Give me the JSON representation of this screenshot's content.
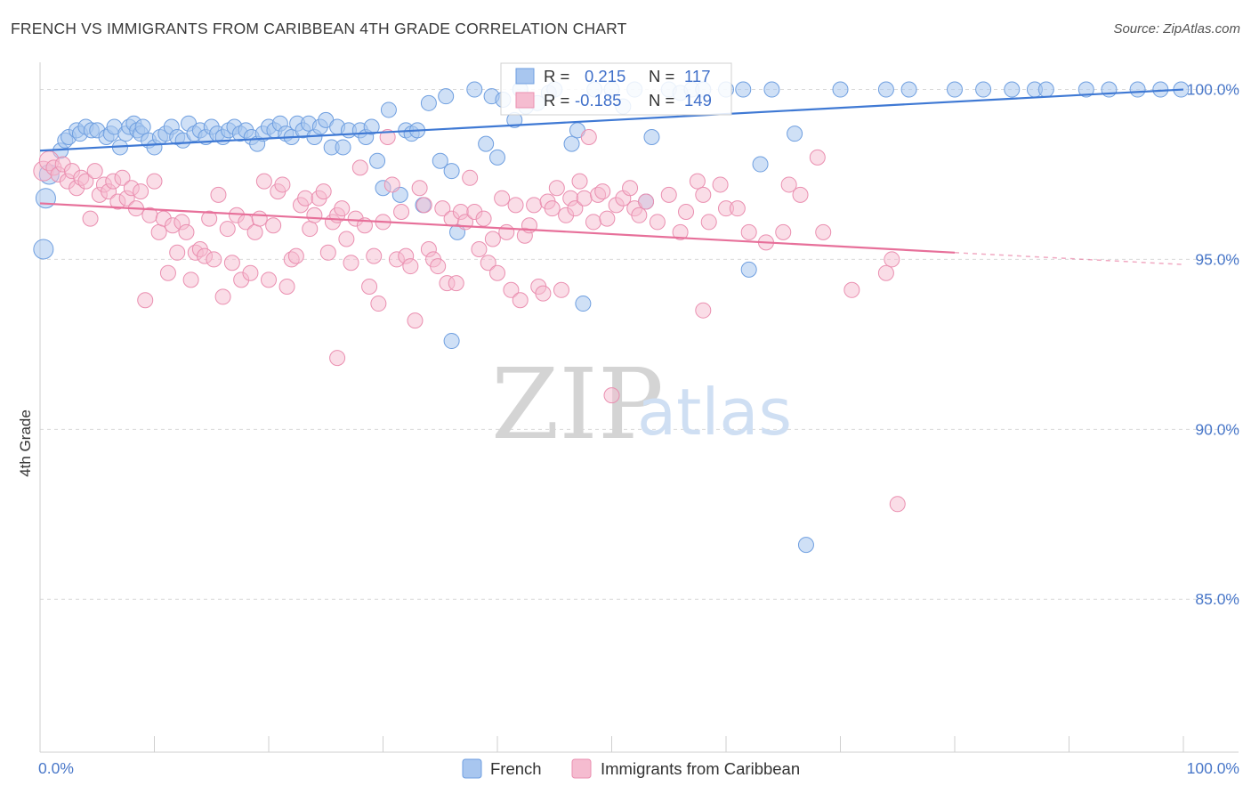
{
  "header": {
    "title": "FRENCH VS IMMIGRANTS FROM CARIBBEAN 4TH GRADE CORRELATION CHART",
    "source": "Source: ZipAtlas.com"
  },
  "watermark": {
    "zip": "ZIP",
    "atlas": "atlas"
  },
  "stats_box": {
    "rows": [
      {
        "r_label": "R =",
        "r_value": "0.215",
        "n_label": "N =",
        "n_value": "117"
      },
      {
        "r_label": "R =",
        "r_value": "-0.185",
        "n_label": "N =",
        "n_value": "149"
      }
    ]
  },
  "colors": {
    "french": "#6f9fe0",
    "french_fill": "#a8c6ef",
    "french_line": "#3f79d4",
    "caribbean": "#ea8fb0",
    "caribbean_fill": "#f5bcd0",
    "caribbean_line": "#e7709a",
    "tick_text": "#4a78c9",
    "grid": "#d9d9d9"
  },
  "chart_data": {
    "type": "scatter",
    "title": "FRENCH VS IMMIGRANTS FROM CARIBBEAN 4TH GRADE CORRELATION CHART",
    "xlabel": "",
    "ylabel": "4th Grade",
    "xlim": [
      0,
      100
    ],
    "ylim": [
      80.5,
      100.8
    ],
    "x_tick_labels": [
      "0.0%",
      "100.0%"
    ],
    "y_ticks": [
      85,
      90,
      95,
      100
    ],
    "y_tick_labels": [
      "85.0%",
      "90.0%",
      "95.0%",
      "100.0%"
    ],
    "grid": true,
    "legend_position": "bottom",
    "series": [
      {
        "name": "French",
        "r": 0.215,
        "n": 117,
        "trend": {
          "x": [
            0,
            100
          ],
          "y": [
            98.2,
            100.0
          ]
        },
        "points": [
          [
            0.5,
            96.8
          ],
          [
            0.3,
            95.3
          ],
          [
            0.8,
            97.5
          ],
          [
            1.8,
            98.2
          ],
          [
            2.2,
            98.5
          ],
          [
            2.5,
            98.6
          ],
          [
            3.2,
            98.8
          ],
          [
            3.5,
            98.7
          ],
          [
            4.0,
            98.9
          ],
          [
            4.5,
            98.8
          ],
          [
            5.0,
            98.8
          ],
          [
            5.8,
            98.6
          ],
          [
            6.2,
            98.7
          ],
          [
            6.5,
            98.9
          ],
          [
            7.0,
            98.3
          ],
          [
            7.5,
            98.7
          ],
          [
            7.8,
            98.9
          ],
          [
            8.2,
            99.0
          ],
          [
            8.5,
            98.8
          ],
          [
            8.8,
            98.7
          ],
          [
            9.0,
            98.9
          ],
          [
            9.5,
            98.5
          ],
          [
            10.0,
            98.3
          ],
          [
            10.5,
            98.6
          ],
          [
            11.0,
            98.7
          ],
          [
            11.5,
            98.9
          ],
          [
            12.0,
            98.6
          ],
          [
            12.5,
            98.5
          ],
          [
            13.0,
            99.0
          ],
          [
            13.5,
            98.7
          ],
          [
            14.0,
            98.8
          ],
          [
            14.5,
            98.6
          ],
          [
            15.0,
            98.9
          ],
          [
            15.5,
            98.7
          ],
          [
            16.0,
            98.6
          ],
          [
            16.5,
            98.8
          ],
          [
            17.0,
            98.9
          ],
          [
            17.5,
            98.7
          ],
          [
            18.0,
            98.8
          ],
          [
            18.5,
            98.6
          ],
          [
            19.0,
            98.4
          ],
          [
            19.5,
            98.7
          ],
          [
            20.0,
            98.9
          ],
          [
            20.5,
            98.8
          ],
          [
            21.0,
            99.0
          ],
          [
            21.5,
            98.7
          ],
          [
            22.0,
            98.6
          ],
          [
            22.5,
            99.0
          ],
          [
            23.0,
            98.8
          ],
          [
            23.5,
            99.0
          ],
          [
            24.0,
            98.6
          ],
          [
            24.5,
            98.9
          ],
          [
            25.0,
            99.1
          ],
          [
            25.5,
            98.3
          ],
          [
            26.0,
            98.9
          ],
          [
            26.5,
            98.3
          ],
          [
            27.0,
            98.8
          ],
          [
            28.0,
            98.8
          ],
          [
            28.5,
            98.6
          ],
          [
            29.0,
            98.9
          ],
          [
            29.5,
            97.9
          ],
          [
            30.0,
            97.1
          ],
          [
            30.5,
            99.4
          ],
          [
            31.5,
            96.9
          ],
          [
            32.0,
            98.8
          ],
          [
            32.5,
            98.7
          ],
          [
            33.0,
            98.8
          ],
          [
            33.5,
            96.6
          ],
          [
            34.0,
            99.6
          ],
          [
            35.0,
            97.9
          ],
          [
            35.5,
            99.8
          ],
          [
            36.0,
            97.6
          ],
          [
            36.5,
            95.8
          ],
          [
            38.0,
            100.0
          ],
          [
            39.0,
            98.4
          ],
          [
            39.5,
            99.8
          ],
          [
            40.0,
            98.0
          ],
          [
            40.5,
            99.7
          ],
          [
            41.5,
            99.1
          ],
          [
            42.0,
            100.0
          ],
          [
            42.5,
            99.5
          ],
          [
            43.5,
            99.6
          ],
          [
            44.5,
            99.9
          ],
          [
            45.0,
            100.0
          ],
          [
            46.5,
            98.4
          ],
          [
            47.0,
            98.8
          ],
          [
            47.5,
            93.7
          ],
          [
            48.5,
            100.0
          ],
          [
            50.0,
            100.0
          ],
          [
            51.0,
            99.5
          ],
          [
            52.0,
            100.0
          ],
          [
            53.0,
            96.7
          ],
          [
            53.5,
            98.6
          ],
          [
            55.0,
            100.0
          ],
          [
            56.0,
            99.9
          ],
          [
            57.0,
            100.0
          ],
          [
            58.0,
            100.0
          ],
          [
            60.0,
            100.0
          ],
          [
            61.5,
            100.0
          ],
          [
            62.0,
            94.7
          ],
          [
            63.0,
            97.8
          ],
          [
            64.0,
            100.0
          ],
          [
            66.0,
            98.7
          ],
          [
            67.0,
            86.6
          ],
          [
            70.0,
            100.0
          ],
          [
            74.0,
            100.0
          ],
          [
            76.0,
            100.0
          ],
          [
            80.0,
            100.0
          ],
          [
            82.5,
            100.0
          ],
          [
            85.0,
            100.0
          ],
          [
            87.0,
            100.0
          ],
          [
            88.0,
            100.0
          ],
          [
            91.5,
            100.0
          ],
          [
            93.5,
            100.0
          ],
          [
            96.0,
            100.0
          ],
          [
            98.0,
            100.0
          ],
          [
            99.8,
            100.0
          ],
          [
            36.0,
            92.6
          ]
        ]
      },
      {
        "name": "Immigrants from Caribbean",
        "r": -0.185,
        "n": 149,
        "trend": {
          "x": [
            0,
            80
          ],
          "y": [
            96.65,
            95.2
          ]
        },
        "trend_dashed": {
          "x": [
            80,
            100
          ],
          "y": [
            95.2,
            94.85
          ]
        },
        "points": [
          [
            0.3,
            97.6
          ],
          [
            0.8,
            97.9
          ],
          [
            1.2,
            97.7
          ],
          [
            1.6,
            97.5
          ],
          [
            2.0,
            97.8
          ],
          [
            2.4,
            97.3
          ],
          [
            2.8,
            97.6
          ],
          [
            3.2,
            97.1
          ],
          [
            3.6,
            97.4
          ],
          [
            4.0,
            97.3
          ],
          [
            4.4,
            96.2
          ],
          [
            4.8,
            97.6
          ],
          [
            5.2,
            96.9
          ],
          [
            5.6,
            97.2
          ],
          [
            6.0,
            97.0
          ],
          [
            6.4,
            97.3
          ],
          [
            6.8,
            96.7
          ],
          [
            7.2,
            97.4
          ],
          [
            7.6,
            96.8
          ],
          [
            8.0,
            97.1
          ],
          [
            8.4,
            96.5
          ],
          [
            8.8,
            97.0
          ],
          [
            9.2,
            93.8
          ],
          [
            9.6,
            96.3
          ],
          [
            10.0,
            97.3
          ],
          [
            10.4,
            95.8
          ],
          [
            10.8,
            96.2
          ],
          [
            11.2,
            94.6
          ],
          [
            11.6,
            96.0
          ],
          [
            12.0,
            95.2
          ],
          [
            12.4,
            96.1
          ],
          [
            12.8,
            95.8
          ],
          [
            13.2,
            94.4
          ],
          [
            13.6,
            95.2
          ],
          [
            14.0,
            95.3
          ],
          [
            14.4,
            95.1
          ],
          [
            14.8,
            96.2
          ],
          [
            15.2,
            95.0
          ],
          [
            15.6,
            96.9
          ],
          [
            16.0,
            93.9
          ],
          [
            16.4,
            95.9
          ],
          [
            16.8,
            94.9
          ],
          [
            17.2,
            96.3
          ],
          [
            17.6,
            94.4
          ],
          [
            18.0,
            96.1
          ],
          [
            18.4,
            94.6
          ],
          [
            18.8,
            95.8
          ],
          [
            19.2,
            96.2
          ],
          [
            19.6,
            97.3
          ],
          [
            20.0,
            94.4
          ],
          [
            20.4,
            96.0
          ],
          [
            20.8,
            97.0
          ],
          [
            21.2,
            97.2
          ],
          [
            21.6,
            94.2
          ],
          [
            22.0,
            95.0
          ],
          [
            22.4,
            95.1
          ],
          [
            22.8,
            96.6
          ],
          [
            23.2,
            96.8
          ],
          [
            23.6,
            95.9
          ],
          [
            24.0,
            96.3
          ],
          [
            24.4,
            96.8
          ],
          [
            24.8,
            97.0
          ],
          [
            25.2,
            95.2
          ],
          [
            25.6,
            96.1
          ],
          [
            26.0,
            96.3
          ],
          [
            26.4,
            96.5
          ],
          [
            26.8,
            95.6
          ],
          [
            27.2,
            94.9
          ],
          [
            27.6,
            96.2
          ],
          [
            28.0,
            97.7
          ],
          [
            28.4,
            96.0
          ],
          [
            28.8,
            94.2
          ],
          [
            29.2,
            95.1
          ],
          [
            29.6,
            93.7
          ],
          [
            30.0,
            96.1
          ],
          [
            30.4,
            98.6
          ],
          [
            30.8,
            97.2
          ],
          [
            31.2,
            95.0
          ],
          [
            31.6,
            96.4
          ],
          [
            32.0,
            95.1
          ],
          [
            32.4,
            94.8
          ],
          [
            32.8,
            93.2
          ],
          [
            33.2,
            97.1
          ],
          [
            33.6,
            96.6
          ],
          [
            34.0,
            95.3
          ],
          [
            34.4,
            95.0
          ],
          [
            34.8,
            94.8
          ],
          [
            35.2,
            96.5
          ],
          [
            35.6,
            94.3
          ],
          [
            36.0,
            96.2
          ],
          [
            36.4,
            94.3
          ],
          [
            36.8,
            96.4
          ],
          [
            37.2,
            96.1
          ],
          [
            37.6,
            97.4
          ],
          [
            38.0,
            96.4
          ],
          [
            38.4,
            95.3
          ],
          [
            38.8,
            96.2
          ],
          [
            39.2,
            94.9
          ],
          [
            39.6,
            95.6
          ],
          [
            40.0,
            94.6
          ],
          [
            40.4,
            96.8
          ],
          [
            40.8,
            95.8
          ],
          [
            41.2,
            94.1
          ],
          [
            41.6,
            96.6
          ],
          [
            42.0,
            93.8
          ],
          [
            42.4,
            95.7
          ],
          [
            42.8,
            96.0
          ],
          [
            43.2,
            96.6
          ],
          [
            43.6,
            94.2
          ],
          [
            44.0,
            94.0
          ],
          [
            44.4,
            96.7
          ],
          [
            44.8,
            96.5
          ],
          [
            45.2,
            97.1
          ],
          [
            45.6,
            94.1
          ],
          [
            46.0,
            96.3
          ],
          [
            46.4,
            96.8
          ],
          [
            46.8,
            96.5
          ],
          [
            47.2,
            97.3
          ],
          [
            47.6,
            96.8
          ],
          [
            48.0,
            98.6
          ],
          [
            48.4,
            96.1
          ],
          [
            48.8,
            96.9
          ],
          [
            49.2,
            97.0
          ],
          [
            49.6,
            96.2
          ],
          [
            50.0,
            91.0
          ],
          [
            50.4,
            96.6
          ],
          [
            51.0,
            96.8
          ],
          [
            51.6,
            97.1
          ],
          [
            52.0,
            96.5
          ],
          [
            52.4,
            96.3
          ],
          [
            53.0,
            96.7
          ],
          [
            54.0,
            96.1
          ],
          [
            55.0,
            96.9
          ],
          [
            56.0,
            95.8
          ],
          [
            56.5,
            96.4
          ],
          [
            57.5,
            97.3
          ],
          [
            58.0,
            96.9
          ],
          [
            58.5,
            96.1
          ],
          [
            59.5,
            97.2
          ],
          [
            60.0,
            96.5
          ],
          [
            61.0,
            96.5
          ],
          [
            62.0,
            95.8
          ],
          [
            63.5,
            95.5
          ],
          [
            65.0,
            95.8
          ],
          [
            65.5,
            97.2
          ],
          [
            66.5,
            96.9
          ],
          [
            68.0,
            98.0
          ],
          [
            68.5,
            95.8
          ],
          [
            71.0,
            94.1
          ],
          [
            74.0,
            94.6
          ],
          [
            74.5,
            95.0
          ],
          [
            75.0,
            87.8
          ],
          [
            58.0,
            93.5
          ],
          [
            26.0,
            92.1
          ]
        ]
      }
    ]
  },
  "legend": {
    "items": [
      {
        "label": "French"
      },
      {
        "label": "Immigrants from Caribbean"
      }
    ]
  }
}
